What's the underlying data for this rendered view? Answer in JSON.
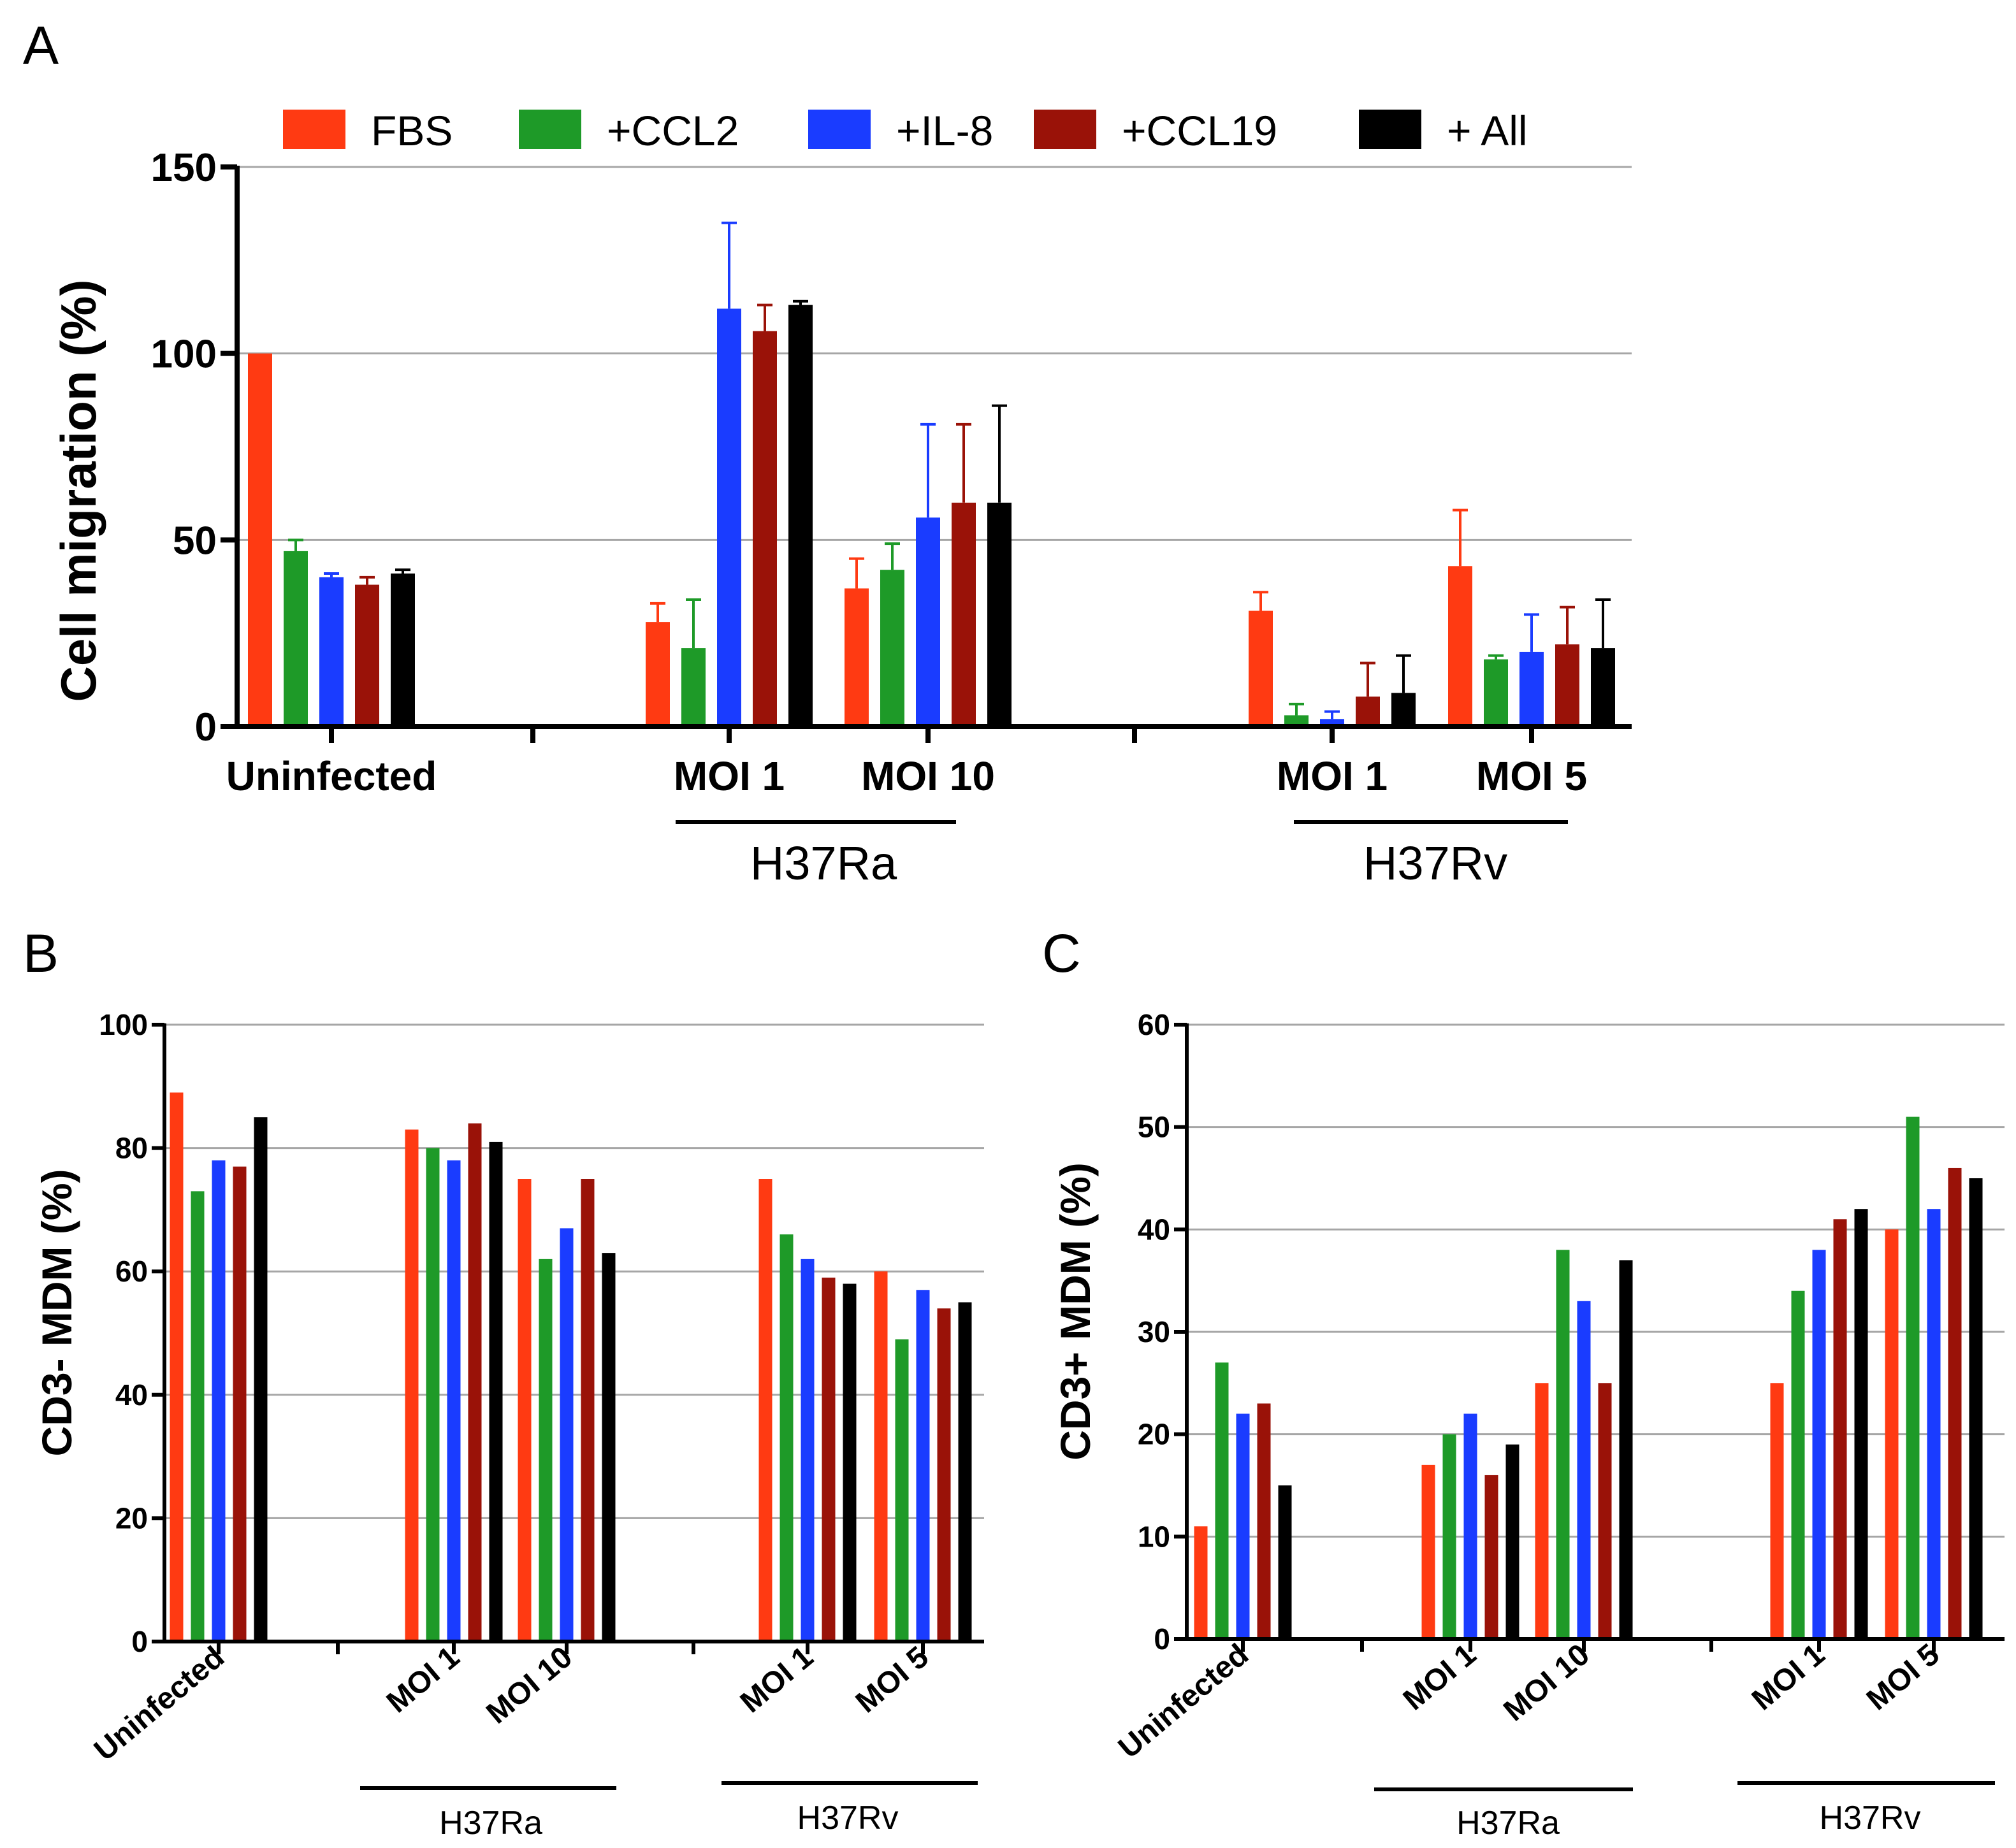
{
  "colors": {
    "FBS": "#ff3a12",
    "+CCL2": "#1e9a28",
    "+IL-8": "#1a3cff",
    "+CCL19": "#9a1208",
    "+ All": "#000000"
  },
  "legend": [
    "FBS",
    "+CCL2",
    "+IL-8",
    "+CCL19",
    "+ All"
  ],
  "chart_data": [
    {
      "panel": "A",
      "type": "bar",
      "ylabel": "Cell migration (%)",
      "ylim": [
        0,
        150
      ],
      "yticks": [
        0,
        50,
        100,
        150
      ],
      "grid": true,
      "legend_position": "top",
      "groups": [
        "Uninfected",
        "MOI 1",
        "MOI 10",
        "MOI 1",
        "MOI 5"
      ],
      "strain_labels": [
        "H37Ra",
        "H37Rv"
      ],
      "series": [
        {
          "name": "FBS",
          "values": [
            100,
            28,
            37,
            31,
            43
          ],
          "errors": [
            0,
            5,
            8,
            5,
            15
          ]
        },
        {
          "name": "+CCL2",
          "values": [
            47,
            21,
            42,
            3,
            18
          ],
          "errors": [
            3,
            13,
            7,
            3,
            1
          ]
        },
        {
          "name": "+IL-8",
          "values": [
            40,
            112,
            56,
            2,
            20
          ],
          "errors": [
            1,
            23,
            25,
            2,
            10
          ]
        },
        {
          "name": "+CCL19",
          "values": [
            38,
            106,
            60,
            8,
            22
          ],
          "errors": [
            2,
            7,
            21,
            9,
            10
          ]
        },
        {
          "name": "+ All",
          "values": [
            41,
            113,
            60,
            9,
            21
          ],
          "errors": [
            1,
            1,
            26,
            10,
            13
          ]
        }
      ]
    },
    {
      "panel": "B",
      "type": "bar",
      "ylabel": "CD3- MDM (%)",
      "ylim": [
        0,
        100
      ],
      "yticks": [
        0,
        20,
        40,
        60,
        80,
        100
      ],
      "grid": true,
      "groups": [
        "Uninfected",
        "MOI 1",
        "MOI 10",
        "MOI 1",
        "MOI 5"
      ],
      "strain_labels": [
        "H37Ra",
        "H37Rv"
      ],
      "series": [
        {
          "name": "FBS",
          "values": [
            89,
            83,
            75,
            75,
            60
          ]
        },
        {
          "name": "+CCL2",
          "values": [
            73,
            80,
            62,
            66,
            49
          ]
        },
        {
          "name": "+IL-8",
          "values": [
            78,
            78,
            67,
            62,
            57
          ]
        },
        {
          "name": "+CCL19",
          "values": [
            77,
            84,
            75,
            59,
            54
          ]
        },
        {
          "name": "+ All",
          "values": [
            85,
            81,
            63,
            58,
            55
          ]
        }
      ]
    },
    {
      "panel": "C",
      "type": "bar",
      "ylabel": "CD3+ MDM (%)",
      "ylim": [
        0,
        60
      ],
      "yticks": [
        0,
        10,
        20,
        30,
        40,
        50,
        60
      ],
      "grid": true,
      "groups": [
        "Uninfected",
        "MOI 1",
        "MOI 10",
        "MOI 1",
        "MOI 5"
      ],
      "strain_labels": [
        "H37Ra",
        "H37Rv"
      ],
      "series": [
        {
          "name": "FBS",
          "values": [
            11,
            17,
            25,
            25,
            40
          ]
        },
        {
          "name": "+CCL2",
          "values": [
            27,
            20,
            38,
            34,
            51
          ]
        },
        {
          "name": "+IL-8",
          "values": [
            22,
            22,
            33,
            38,
            42
          ]
        },
        {
          "name": "+CCL19",
          "values": [
            23,
            16,
            25,
            41,
            46
          ]
        },
        {
          "name": "+ All",
          "values": [
            15,
            19,
            37,
            42,
            45
          ]
        }
      ]
    }
  ]
}
